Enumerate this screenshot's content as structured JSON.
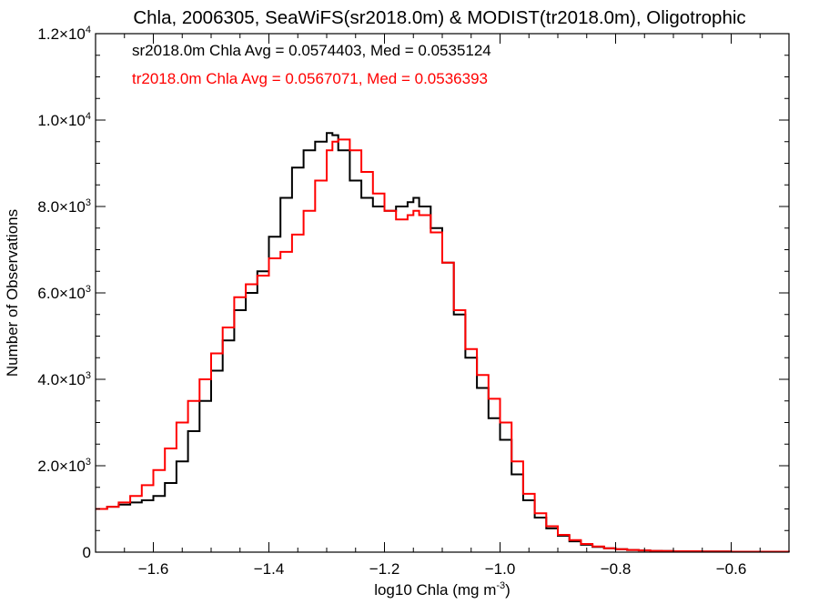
{
  "chart_data": {
    "type": "line",
    "subtype": "step-histogram",
    "title": "Chla, 2006305, SeaWiFS(sr2018.0m) & MODIST(tr2018.0m), Oligotrophic",
    "xlabel": {
      "text": "log10 Chla (mg m",
      "sup": "-3",
      "close": ")"
    },
    "ylabel": "Number of Observations",
    "xlim": [
      -1.7,
      -0.5
    ],
    "ylim": [
      0,
      12000
    ],
    "x_ticks": [
      {
        "value": -1.6,
        "label": "−1.6"
      },
      {
        "value": -1.4,
        "label": "−1.4"
      },
      {
        "value": -1.2,
        "label": "−1.2"
      },
      {
        "value": -1.0,
        "label": "−1.0"
      },
      {
        "value": -0.8,
        "label": "−0.8"
      },
      {
        "value": -0.6,
        "label": "−0.6"
      }
    ],
    "y_ticks": [
      {
        "value": 0,
        "mant": "0",
        "exp": ""
      },
      {
        "value": 2000,
        "mant": "2.0×10",
        "exp": "3"
      },
      {
        "value": 4000,
        "mant": "4.0×10",
        "exp": "3"
      },
      {
        "value": 6000,
        "mant": "6.0×10",
        "exp": "3"
      },
      {
        "value": 8000,
        "mant": "8.0×10",
        "exp": "3"
      },
      {
        "value": 10000,
        "mant": "1.0×10",
        "exp": "4"
      },
      {
        "value": 12000,
        "mant": "1.2×10",
        "exp": "4"
      }
    ],
    "x_minor_step": 0.05,
    "y_minor_step": 500,
    "grid": false,
    "annotations": [
      {
        "text": "sr2018.0m Chla Avg = 0.0574403, Med = 0.0535124",
        "color": "#000000"
      },
      {
        "text": "tr2018.0m Chla Avg = 0.0567071, Med = 0.0536393",
        "color": "#ff0000"
      }
    ],
    "series": [
      {
        "color": "#000000",
        "x": [
          -1.7,
          -1.68,
          -1.66,
          -1.64,
          -1.62,
          -1.6,
          -1.58,
          -1.56,
          -1.54,
          -1.52,
          -1.5,
          -1.48,
          -1.46,
          -1.44,
          -1.42,
          -1.4,
          -1.38,
          -1.36,
          -1.34,
          -1.32,
          -1.3,
          -1.29,
          -1.28,
          -1.26,
          -1.24,
          -1.22,
          -1.2,
          -1.18,
          -1.16,
          -1.15,
          -1.14,
          -1.12,
          -1.1,
          -1.08,
          -1.06,
          -1.04,
          -1.02,
          -1.0,
          -0.98,
          -0.96,
          -0.94,
          -0.92,
          -0.9,
          -0.88,
          -0.86,
          -0.84,
          -0.82,
          -0.8,
          -0.78,
          -0.76,
          -0.74,
          -0.72,
          -0.7,
          -0.65,
          -0.6,
          -0.55,
          -0.5
        ],
        "y": [
          1000,
          1050,
          1100,
          1150,
          1200,
          1300,
          1600,
          2100,
          2800,
          3500,
          4200,
          4900,
          5600,
          6000,
          6500,
          7300,
          8200,
          8900,
          9300,
          9500,
          9700,
          9650,
          9300,
          8600,
          8200,
          8000,
          7900,
          8000,
          8100,
          8200,
          8000,
          7500,
          6700,
          5500,
          4500,
          3800,
          3100,
          2600,
          1800,
          1200,
          800,
          550,
          380,
          250,
          170,
          120,
          90,
          70,
          50,
          40,
          30,
          25,
          20,
          15,
          10,
          10,
          8
        ]
      },
      {
        "color": "#ff0000",
        "x": [
          -1.7,
          -1.68,
          -1.66,
          -1.64,
          -1.62,
          -1.6,
          -1.58,
          -1.56,
          -1.54,
          -1.52,
          -1.5,
          -1.48,
          -1.46,
          -1.44,
          -1.42,
          -1.4,
          -1.38,
          -1.36,
          -1.34,
          -1.32,
          -1.3,
          -1.29,
          -1.28,
          -1.26,
          -1.24,
          -1.22,
          -1.2,
          -1.18,
          -1.16,
          -1.15,
          -1.14,
          -1.12,
          -1.1,
          -1.08,
          -1.06,
          -1.04,
          -1.02,
          -1.0,
          -0.98,
          -0.96,
          -0.94,
          -0.92,
          -0.9,
          -0.88,
          -0.86,
          -0.84,
          -0.82,
          -0.8,
          -0.78,
          -0.76,
          -0.74,
          -0.72,
          -0.7,
          -0.65,
          -0.6,
          -0.55,
          -0.5
        ],
        "y": [
          1000,
          1050,
          1150,
          1300,
          1550,
          1900,
          2400,
          3000,
          3500,
          4000,
          4600,
          5200,
          5900,
          6200,
          6400,
          6800,
          6950,
          7350,
          7900,
          8600,
          9300,
          9500,
          9550,
          9300,
          8800,
          8300,
          7900,
          7700,
          7800,
          7900,
          7800,
          7400,
          6700,
          5600,
          4700,
          4100,
          3550,
          3000,
          2100,
          1350,
          900,
          600,
          400,
          280,
          190,
          130,
          90,
          70,
          50,
          40,
          30,
          25,
          20,
          15,
          10,
          10,
          8
        ]
      }
    ]
  }
}
